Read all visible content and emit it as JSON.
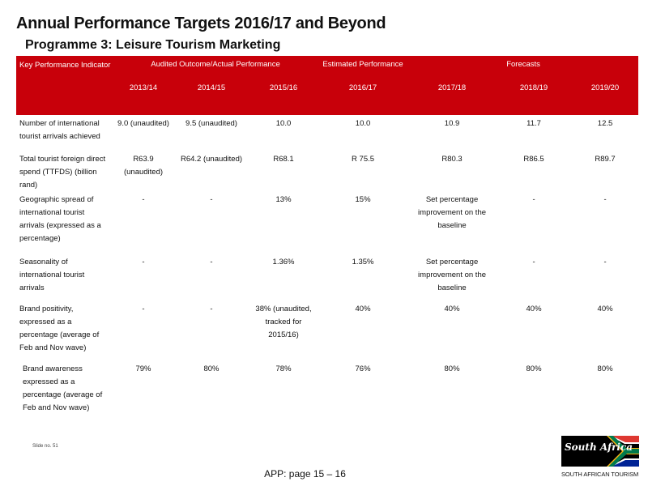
{
  "title": "Annual Performance Targets 2016/17 and Beyond",
  "subtitle": "Programme 3: Leisure Tourism Marketing",
  "table": {
    "header_group": {
      "kpi": "Key Performance Indicator",
      "audited": "Audited Outcome/Actual Performance",
      "estimated": "Estimated Performance",
      "forecasts": "Forecasts"
    },
    "years": [
      "2013/14",
      "2014/15",
      "2015/16",
      "2016/17",
      "2017/18",
      "2018/19",
      "2019/20"
    ],
    "rows": [
      {
        "indicator": "Number of international tourist arrivals achieved",
        "values": [
          "9.0 (unaudited)",
          "9.5 (unaudited)",
          "10.0",
          "10.0",
          "10.9",
          "11.7",
          "12.5"
        ]
      },
      {
        "indicator": "Total tourist foreign direct spend (TTFDS) (billion rand)",
        "values": [
          "R63.9 (unaudited)",
          "R64.2 (unaudited)",
          "R68.1",
          "R 75.5",
          "R80.3",
          "R86.5",
          "R89.7"
        ]
      },
      {
        "indicator": "Geographic spread of international tourist arrivals (expressed as a percentage)",
        "values": [
          "-",
          "-",
          "13%",
          "15%",
          "Set percentage improvement on the baseline",
          "-",
          "-"
        ]
      },
      {
        "indicator": "Seasonality of international tourist arrivals",
        "values": [
          "-",
          "-",
          "1.36%",
          "1.35%",
          "Set percentage improvement on the baseline",
          "-",
          "-"
        ]
      },
      {
        "indicator": "Brand positivity, expressed as a percentage (average of Feb and Nov wave)",
        "values": [
          "-",
          "-",
          "38% (unaudited, tracked for 2015/16)",
          "40%",
          "40%",
          "40%",
          "40%"
        ]
      },
      {
        "indicator": "Brand awareness expressed as a percentage (average of Feb and Nov wave)",
        "values": [
          "79%",
          "80%",
          "78%",
          "76%",
          "80%",
          "80%",
          "80%"
        ]
      }
    ]
  },
  "slide_number": "Slide no. 51",
  "footer": "APP: page 15 – 16",
  "logo": {
    "script_text": "South Africa",
    "caption": "SOUTH AFRICAN TOURISM",
    "colors": {
      "black": "#000000",
      "green": "#007a4d",
      "yellow": "#ffb612",
      "red": "#de3831",
      "blue": "#002395",
      "white": "#ffffff"
    }
  },
  "colors": {
    "header_red": "#c8000a",
    "header_text": "#ffffff"
  }
}
